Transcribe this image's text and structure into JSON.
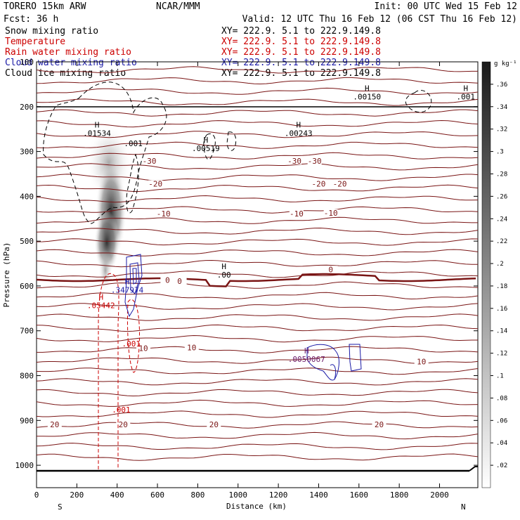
{
  "header": {
    "model": "TORERO  15km ARW",
    "center": "NCAR/MMM",
    "init": "Init: 00 UTC Wed 15 Feb 12",
    "fcst": "Fcst:   36 h",
    "valid": "Valid: 12 UTC Thu 16 Feb 12 (06 CST Thu 16 Feb 12)"
  },
  "fields": [
    {
      "name": "Snow mixing ratio",
      "xy": "XY= 222.9.  5.1 to 222.9.149.8",
      "color": "#000000"
    },
    {
      "name": "Temperature",
      "xy": "XY= 222.9.  5.1 to 222.9.149.8",
      "color": "#cc0000"
    },
    {
      "name": "Rain water mixing ratio",
      "xy": "XY= 222.9.  5.1 to 222.9.149.8",
      "color": "#cc0000"
    },
    {
      "name": "Cloud water mixing ratio",
      "xy": "XY= 222.9.  5.1 to 222.9.149.8",
      "color": "#1a1aa6"
    },
    {
      "name": "Cloud ice mixing ratio",
      "xy": "XY= 222.9.  5.1 to 222.9.149.8",
      "color": "#000000"
    }
  ],
  "chart_data": {
    "type": "cross-section",
    "xlabel": "Distance (km)",
    "ylabel": "Pressure (hPa)",
    "x_ticks": [
      0,
      200,
      400,
      600,
      800,
      1000,
      1200,
      1400,
      1600,
      1800,
      2000
    ],
    "y_ticks": [
      100,
      200,
      300,
      400,
      500,
      600,
      700,
      800,
      900,
      1000
    ],
    "xlim": [
      0,
      2190
    ],
    "ylim": [
      1050,
      100
    ],
    "left_end": "S",
    "right_end": "N",
    "colorbar": {
      "unit": "g kg⁻¹",
      "ticks": [
        ".02",
        ".04",
        ".06",
        ".08",
        ".1",
        ".12",
        ".14",
        ".16",
        ".18",
        ".2",
        ".22",
        ".24",
        ".26",
        ".28",
        ".3",
        ".32",
        ".34",
        ".36"
      ],
      "min": 0,
      "max": 0.38
    },
    "temperature_contours": [
      {
        "label": "20",
        "base_p": 890,
        "labels_at": [
          {
            "x": 90,
            "p": 912
          },
          {
            "x": 430,
            "p": 912
          },
          {
            "x": 880,
            "p": 912
          },
          {
            "x": 1700,
            "p": 912
          }
        ]
      },
      {
        "label": "10",
        "base_p": 746,
        "labels_at": [
          {
            "x": 530,
            "p": 742
          },
          {
            "x": 770,
            "p": 740
          },
          {
            "x": 1910,
            "p": 772
          }
        ]
      },
      {
        "label": "0",
        "base_p": 586,
        "bold": true,
        "labels_at": [
          {
            "x": 650,
            "p": 590
          },
          {
            "x": 710,
            "p": 592
          },
          {
            "x": 1460,
            "p": 566
          }
        ]
      },
      {
        "label": "-10",
        "base_p": 425,
        "labels_at": [
          {
            "x": 630,
            "p": 442
          },
          {
            "x": 1290,
            "p": 442
          },
          {
            "x": 1460,
            "p": 440
          }
        ]
      },
      {
        "label": "-20",
        "base_p": 362,
        "labels_at": [
          {
            "x": 590,
            "p": 375
          },
          {
            "x": 1400,
            "p": 375
          },
          {
            "x": 1505,
            "p": 375
          }
        ]
      },
      {
        "label": "-30",
        "base_p": 318,
        "labels_at": [
          {
            "x": 560,
            "p": 324
          },
          {
            "x": 1280,
            "p": 324
          },
          {
            "x": 1380,
            "p": 324
          }
        ]
      }
    ],
    "highs": [
      {
        "mark": "H",
        "value": ".01534",
        "x": 300,
        "p": 262,
        "color": "#000000"
      },
      {
        "mark": "H",
        "value": ".00519",
        "x": 840,
        "p": 296,
        "color": "#000000"
      },
      {
        "mark": "H",
        "value": ".00243",
        "x": 1300,
        "p": 262,
        "color": "#000000"
      },
      {
        "mark": "H",
        "value": ".00150",
        "x": 1640,
        "p": 181,
        "color": "#000000"
      },
      {
        "mark": "H",
        "value": ".001",
        "x": 2130,
        "p": 181,
        "color": "#000000"
      },
      {
        "mark": "H",
        "value": ".00",
        "x": 930,
        "p": 578,
        "color": "#000000"
      },
      {
        "mark": "H",
        "value": ".347974",
        "x": 450,
        "p": 612,
        "color": "#1a1aa6"
      },
      {
        "mark": "H",
        "value": ".05442",
        "x": 320,
        "p": 646,
        "color": "#cc0000"
      },
      {
        "mark": "H",
        "value": ".0050067",
        "x": 1340,
        "p": 766,
        "color": "#6a1a6a"
      }
    ],
    "other_labels": [
      {
        "text": ".001",
        "x": 480,
        "p": 288,
        "color": "#000000"
      },
      {
        "text": ".001",
        "x": 470,
        "p": 735,
        "color": "#cc0000"
      },
      {
        "text": ".001",
        "x": 420,
        "p": 882,
        "color": "#cc0000"
      }
    ]
  }
}
